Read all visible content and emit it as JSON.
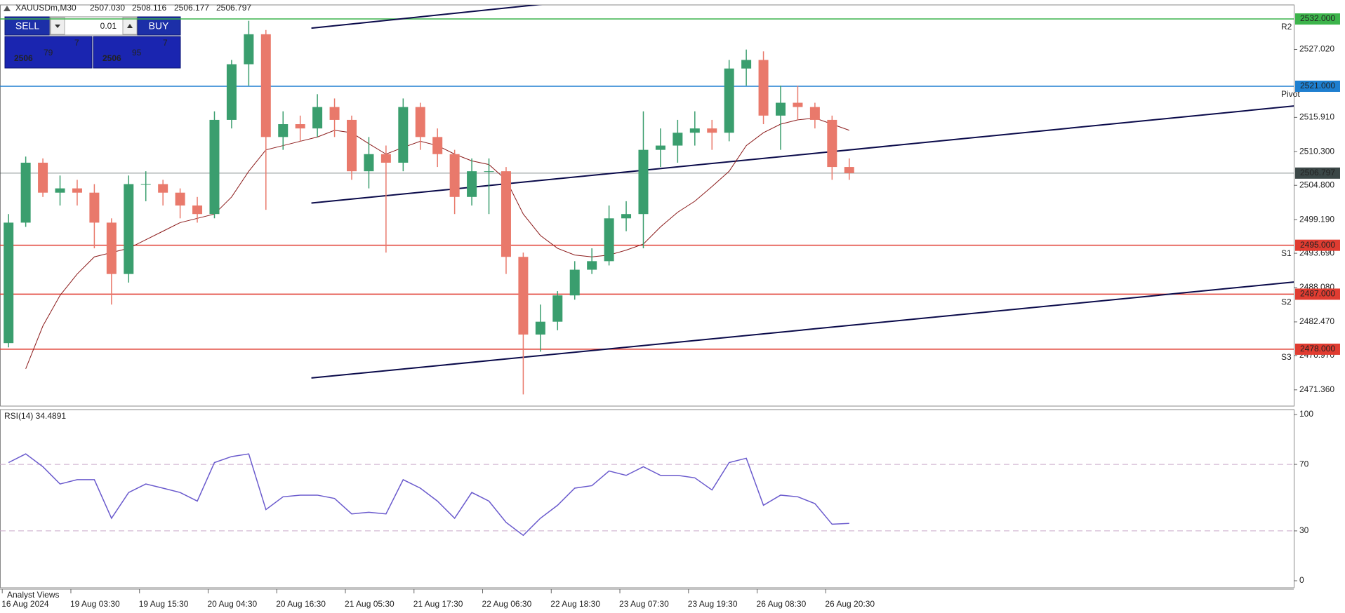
{
  "ui": {
    "symbol": "XAUUSDm,M30",
    "ohlc": [
      "2507.030",
      "2508.116",
      "2506.177",
      "2506.797"
    ],
    "trade_panel": {
      "sell": "SELL",
      "lot": "0.01",
      "buy": "BUY",
      "bid_big": "2506",
      "bid_pips": "79",
      "bid_frac": "7",
      "ask_big": "2506",
      "ask_pips": "95",
      "ask_frac": "7"
    },
    "footer": "Analyst Views"
  },
  "chart_data": [
    {
      "type": "candlestick",
      "categories": [
        "16 Aug 2024",
        null,
        null,
        null,
        "19 Aug 03:30",
        null,
        null,
        null,
        "19 Aug 15:30",
        null,
        null,
        null,
        "20 Aug 04:30",
        null,
        null,
        null,
        "20 Aug 16:30",
        null,
        null,
        null,
        "21 Aug 05:30",
        null,
        null,
        null,
        "21 Aug 17:30",
        null,
        null,
        null,
        "22 Aug 06:30",
        null,
        null,
        null,
        "22 Aug 18:30",
        null,
        null,
        null,
        "23 Aug 07:30",
        null,
        null,
        null,
        "23 Aug 19:30",
        null,
        null,
        null,
        "26 Aug 08:30",
        null,
        null,
        null,
        "26 Aug 20:30",
        null
      ],
      "open": [
        2479.0,
        2498.7,
        2508.5,
        2503.6,
        2504.3,
        2503.6,
        2498.7,
        2490.3,
        2505.0,
        2505.0,
        2503.6,
        2501.5,
        2500.1,
        2515.5,
        2524.6,
        2529.5,
        2512.7,
        2514.8,
        2514.1,
        2517.6,
        2515.5,
        2507.1,
        2509.9,
        2508.5,
        2517.6,
        2512.7,
        2509.9,
        2502.9,
        2507.1,
        2507.1,
        2493.1,
        2480.4,
        2482.5,
        2486.8,
        2491.0,
        2492.4,
        2499.4,
        2500.1,
        2510.6,
        2511.3,
        2513.4,
        2514.1,
        2513.4,
        2523.9,
        2525.3,
        2516.2,
        2518.3,
        2517.6,
        2515.5,
        2507.8
      ],
      "high": [
        2500.1,
        2509.5,
        2509.2,
        2506.4,
        2505.7,
        2505.0,
        2499.4,
        2506.4,
        2507.1,
        2505.7,
        2504.3,
        2502.9,
        2516.9,
        2525.3,
        2531.7,
        2530.2,
        2516.9,
        2516.2,
        2519.7,
        2519.0,
        2516.2,
        2512.7,
        2511.3,
        2519.0,
        2518.3,
        2514.1,
        2510.6,
        2509.2,
        2509.2,
        2507.8,
        2493.8,
        2485.3,
        2487.5,
        2492.4,
        2494.5,
        2501.5,
        2502.2,
        2516.9,
        2514.1,
        2515.5,
        2516.9,
        2515.5,
        2525.3,
        2527.0,
        2526.7,
        2521.1,
        2521.1,
        2518.3,
        2516.2,
        2509.2
      ],
      "low": [
        2478.3,
        2498.0,
        2502.9,
        2501.5,
        2501.5,
        2494.5,
        2485.3,
        2488.9,
        2502.2,
        2501.5,
        2499.4,
        2498.7,
        2499.4,
        2514.1,
        2521.1,
        2500.8,
        2510.6,
        2512.0,
        2512.7,
        2512.7,
        2505.7,
        2504.3,
        2493.8,
        2507.1,
        2510.6,
        2507.8,
        2500.1,
        2501.5,
        2500.1,
        2490.3,
        2470.6,
        2477.6,
        2481.1,
        2486.1,
        2490.3,
        2491.7,
        2497.3,
        2494.5,
        2507.8,
        2508.5,
        2511.3,
        2510.6,
        2512.0,
        2521.1,
        2514.8,
        2510.6,
        2515.5,
        2514.1,
        2505.7,
        2505.7
      ],
      "close": [
        2498.7,
        2508.5,
        2503.6,
        2504.3,
        2503.6,
        2498.7,
        2490.3,
        2505.0,
        2505.0,
        2503.6,
        2501.5,
        2500.1,
        2515.5,
        2524.6,
        2529.5,
        2512.7,
        2514.8,
        2514.1,
        2517.6,
        2515.5,
        2507.1,
        2509.9,
        2508.5,
        2517.6,
        2512.7,
        2509.9,
        2502.9,
        2507.1,
        2507.1,
        2493.1,
        2480.4,
        2482.5,
        2486.8,
        2491.0,
        2492.4,
        2499.4,
        2500.1,
        2510.6,
        2511.3,
        2513.4,
        2514.1,
        2513.4,
        2523.9,
        2525.3,
        2516.2,
        2518.3,
        2517.6,
        2515.5,
        2507.8,
        2506.8
      ],
      "up_color": "#3a9e6e",
      "down_color": "#e9796b",
      "ma": [
        {
          "color": "#8b1a1a",
          "values": [
            null,
            2474.8,
            2481.8,
            2486.8,
            2490.3,
            2493.1,
            2493.8,
            2494.5,
            2495.9,
            2497.3,
            2498.7,
            2499.4,
            2500.1,
            2502.9,
            2507.1,
            2510.6,
            2511.3,
            2512.0,
            2512.7,
            2513.8,
            2513.4,
            2511.6,
            2509.9,
            2511.0,
            2512.0,
            2511.3,
            2509.9,
            2508.8,
            2508.2,
            2505.7,
            2500.1,
            2496.6,
            2494.5,
            2493.4,
            2493.1,
            2493.4,
            2494.2,
            2495.2,
            2498.0,
            2500.4,
            2502.2,
            2504.6,
            2507.1,
            2511.3,
            2513.4,
            2514.8,
            2515.5,
            2515.8,
            2514.8,
            2513.8
          ]
        }
      ],
      "trendlines": [
        {
          "x": [
            17.65,
            32.1
          ],
          "y": [
            2530.5,
            2534.7
          ]
        },
        {
          "x": [
            17.65,
            77.9
          ],
          "y": [
            2501.9,
            2518.6
          ]
        },
        {
          "x": [
            17.65,
            77.9
          ],
          "y": [
            2473.3,
            2489.8
          ]
        }
      ],
      "levels": [
        {
          "value": 2532,
          "label": "2532.000",
          "tag": "R2",
          "color": "#3cb44b"
        },
        {
          "value": 2521,
          "label": "2521.000",
          "tag": "Pivot",
          "color": "#1e7fd0"
        },
        {
          "value": 2506.797,
          "label": "2506.797",
          "color": "#3b4747"
        },
        {
          "value": 2495,
          "label": "2495.000",
          "tag": "S1",
          "color": "#e03c31"
        },
        {
          "value": 2487,
          "label": "2487.000",
          "tag": "S2",
          "color": "#e03c31"
        },
        {
          "value": 2478,
          "label": "2478.000",
          "tag": "S3",
          "color": "#e03c31"
        }
      ],
      "ylim": [
        2468.7,
        2534.3
      ],
      "yticks": [
        {
          "value": 2527.02,
          "label": "2527.020"
        },
        {
          "value": 2515.91,
          "label": "2515.910"
        },
        {
          "value": 2510.3,
          "label": "2510.300"
        },
        {
          "value": 2504.8,
          "label": "2504.800"
        },
        {
          "value": 2499.19,
          "label": "2499.190"
        },
        {
          "value": 2493.69,
          "label": "2493.690"
        },
        {
          "value": 2488.08,
          "label": "2488.080"
        },
        {
          "value": 2482.47,
          "label": "2482.470"
        },
        {
          "value": 2476.97,
          "label": "2476.970"
        },
        {
          "value": 2471.36,
          "label": "2471.360"
        }
      ]
    },
    {
      "type": "line",
      "title": "RSI(14) 34.4891",
      "color": "#6a5acd",
      "values": [
        71.1,
        76.3,
        68.6,
        58.2,
        60.8,
        60.8,
        37.6,
        53.1,
        58.2,
        55.7,
        53.1,
        47.9,
        71.1,
        74.7,
        76.3,
        42.8,
        50.5,
        51.5,
        51.5,
        49.5,
        40.2,
        41.2,
        40.2,
        60.8,
        55.7,
        47.9,
        37.6,
        53.1,
        47.9,
        35.1,
        27.3,
        37.6,
        45.4,
        55.7,
        57.2,
        66.0,
        63.4,
        68.6,
        63.4,
        63.4,
        61.9,
        54.6,
        71.1,
        73.7,
        45.4,
        51.5,
        50.5,
        46.4,
        34.0,
        34.5
      ],
      "ylim": [
        0,
        100
      ],
      "yticks": [
        0,
        30,
        70,
        100
      ]
    }
  ]
}
